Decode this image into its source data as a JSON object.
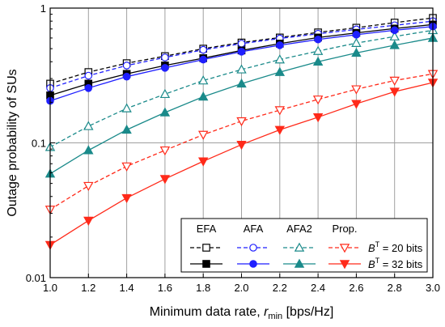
{
  "chart_data": {
    "type": "line",
    "title": "",
    "xlabel": "Minimum data rate, ",
    "xlabel_symbol": "r",
    "xlabel_subscript": "min",
    "xlabel_unit": " [bps/Hz]",
    "ylabel": "Outage probability of SUs",
    "xlim": [
      1.0,
      3.0
    ],
    "ylim": [
      0.01,
      1
    ],
    "y_scale": "log",
    "grid": true,
    "x_ticks": [
      "1.0",
      "1.2",
      "1.4",
      "1.6",
      "1.8",
      "2.0",
      "2.2",
      "2.4",
      "2.6",
      "2.8",
      "3.0"
    ],
    "y_ticks": [
      {
        "value": 0.01,
        "label": "0.01"
      },
      {
        "value": 0.1,
        "label": "0.1"
      },
      {
        "value": 1,
        "label": "1"
      }
    ],
    "x": [
      1.0,
      1.2,
      1.4,
      1.6,
      1.8,
      2.0,
      2.2,
      2.4,
      2.6,
      2.8,
      3.0
    ],
    "legend": {
      "position": "bottom-right",
      "columns": [
        "EFA",
        "AFA",
        "AFA2",
        "Prop."
      ],
      "rows": [
        {
          "label_symbol": "B",
          "label_superscript": "T",
          "label_suffix": " = 20 bits",
          "style": "dashed",
          "fill": "open"
        },
        {
          "label_symbol": "B",
          "label_superscript": "T",
          "label_suffix": " = 32 bits",
          "style": "solid",
          "fill": "filled"
        }
      ]
    },
    "series": [
      {
        "method": "EFA",
        "bits": 20,
        "color": "#000000",
        "dash": true,
        "marker": "square",
        "filled": false,
        "values": [
          0.275,
          0.335,
          0.39,
          0.44,
          0.5,
          0.555,
          0.605,
          0.66,
          0.715,
          0.78,
          0.845
        ]
      },
      {
        "method": "AFA",
        "bits": 20,
        "color": "#1f1fff",
        "dash": true,
        "marker": "circle",
        "filled": false,
        "values": [
          0.255,
          0.315,
          0.375,
          0.43,
          0.49,
          0.545,
          0.595,
          0.645,
          0.695,
          0.745,
          0.8
        ]
      },
      {
        "method": "AFA2",
        "bits": 20,
        "color": "#1a8a8a",
        "dash": true,
        "marker": "triangle-up",
        "filled": false,
        "values": [
          0.093,
          0.133,
          0.18,
          0.23,
          0.29,
          0.35,
          0.415,
          0.48,
          0.55,
          0.615,
          0.685
        ]
      },
      {
        "method": "Prop.",
        "bits": 20,
        "color": "#ff2a1a",
        "dash": true,
        "marker": "triangle-down",
        "filled": false,
        "values": [
          0.032,
          0.048,
          0.067,
          0.088,
          0.115,
          0.145,
          0.175,
          0.21,
          0.25,
          0.29,
          0.325
        ]
      },
      {
        "method": "EFA",
        "bits": 32,
        "color": "#000000",
        "dash": false,
        "marker": "square",
        "filled": true,
        "values": [
          0.225,
          0.275,
          0.325,
          0.375,
          0.425,
          0.485,
          0.545,
          0.605,
          0.655,
          0.705,
          0.755
        ]
      },
      {
        "method": "AFA",
        "bits": 32,
        "color": "#1f1fff",
        "dash": false,
        "marker": "circle",
        "filled": true,
        "values": [
          0.205,
          0.255,
          0.31,
          0.36,
          0.415,
          0.475,
          0.53,
          0.585,
          0.635,
          0.685,
          0.73
        ]
      },
      {
        "method": "AFA2",
        "bits": 32,
        "color": "#1a8a8a",
        "dash": false,
        "marker": "triangle-up",
        "filled": true,
        "values": [
          0.059,
          0.088,
          0.125,
          0.168,
          0.22,
          0.275,
          0.335,
          0.4,
          0.465,
          0.53,
          0.6
        ]
      },
      {
        "method": "Prop.",
        "bits": 32,
        "color": "#ff2a1a",
        "dash": false,
        "marker": "triangle-down",
        "filled": true,
        "values": [
          0.0175,
          0.0265,
          0.039,
          0.054,
          0.073,
          0.097,
          0.125,
          0.155,
          0.195,
          0.24,
          0.28
        ]
      }
    ]
  }
}
